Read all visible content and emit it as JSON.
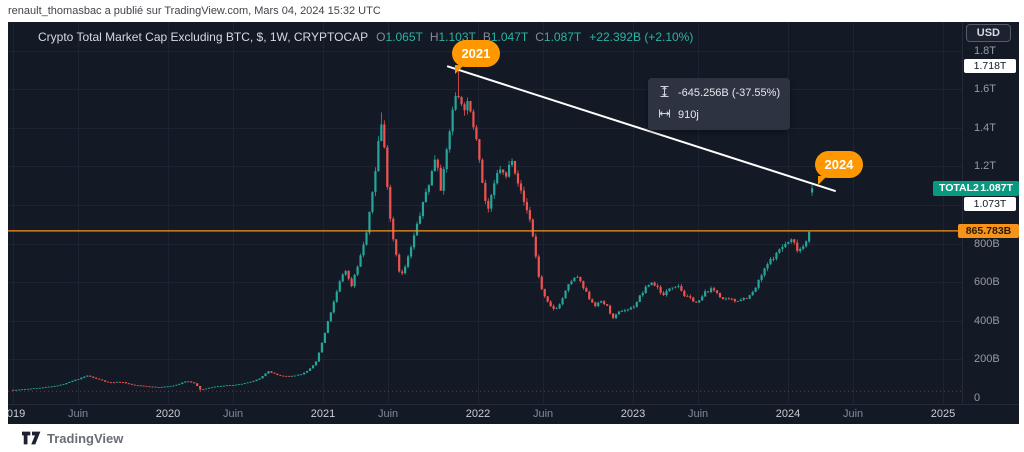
{
  "attribution": {
    "text": "renault_thomasbac a publié sur TradingView.com, Mars 04, 2024 15:32 UTC"
  },
  "legend": {
    "title": "Crypto Total Market Cap Excluding BTC, $, 1W, CRYPTOCAP",
    "ohlc": [
      {
        "label": "O",
        "value": "1.065T"
      },
      {
        "label": "H",
        "value": "1.103T"
      },
      {
        "label": "B",
        "value": "1.047T"
      },
      {
        "label": "C",
        "value": "1.087T"
      }
    ],
    "change": "+22.392B (+2.10%)"
  },
  "measure_tooltip": {
    "price_change": "-645.256B (-37.55%)",
    "duration": "910j"
  },
  "callouts": [
    {
      "label": "2021"
    },
    {
      "label": "2024"
    }
  ],
  "price_axis": {
    "currency_button": "USD",
    "ticks": [
      {
        "label": "1.8T",
        "value": 1800
      },
      {
        "label": "1.6T",
        "value": 1600
      },
      {
        "label": "1.4T",
        "value": 1400
      },
      {
        "label": "1.2T",
        "value": 1200
      },
      {
        "label": "800B",
        "value": 800
      },
      {
        "label": "600B",
        "value": 600
      },
      {
        "label": "400B",
        "value": 400
      },
      {
        "label": "200B",
        "value": 200
      },
      {
        "label": "0",
        "value": 0
      }
    ],
    "badges": {
      "trendline_start_price": "1.718T",
      "symbol": "TOTAL2",
      "last_price": "1.087T",
      "trendline_end_price": "1.073T",
      "hline_price": "865.783B"
    }
  },
  "time_axis": {
    "ticks": [
      {
        "label": "2019",
        "value": 2019.0,
        "major": true
      },
      {
        "label": "Juin",
        "value": 2019.42,
        "major": false
      },
      {
        "label": "2020",
        "value": 2020.0,
        "major": true
      },
      {
        "label": "Juin",
        "value": 2020.42,
        "major": false
      },
      {
        "label": "2021",
        "value": 2021.0,
        "major": true
      },
      {
        "label": "Juin",
        "value": 2021.42,
        "major": false
      },
      {
        "label": "2022",
        "value": 2022.0,
        "major": true
      },
      {
        "label": "Juin",
        "value": 2022.42,
        "major": false
      },
      {
        "label": "2023",
        "value": 2023.0,
        "major": true
      },
      {
        "label": "Juin",
        "value": 2023.42,
        "major": false
      },
      {
        "label": "2024",
        "value": 2024.0,
        "major": true
      },
      {
        "label": "Juin",
        "value": 2024.42,
        "major": false
      },
      {
        "label": "2025",
        "value": 2025.0,
        "major": true
      }
    ]
  },
  "footer": {
    "brand": "TradingView"
  },
  "chart_data": {
    "type": "candlestick",
    "symbol": "CRYPTOCAP:TOTAL2",
    "interval": "1W",
    "title": "Crypto Total Market Cap Excluding BTC",
    "units": "billions USD",
    "x_domain_years": [
      2018.97,
      2025.16
    ],
    "y_axis": {
      "min": 0,
      "max": 1950,
      "grid_step_b": 200
    },
    "start_year": 2019.0,
    "end_year": 2024.17,
    "week_step": 0.019165,
    "seed": 7,
    "up_color": "#26a69a",
    "down_color": "#ef5350",
    "hline_b": 865.783,
    "dotted_line_b": 35,
    "trendline": {
      "from": {
        "year": 2021.806,
        "value_b": 1718
      },
      "to": {
        "year": 2024.303,
        "value_b": 1073
      }
    },
    "measured_move": {
      "change_b": -645.256,
      "change_pct": -37.55,
      "duration_days": 910
    },
    "last_candle_b": {
      "open": 1065,
      "high": 1103,
      "low": 1047,
      "close": 1087
    },
    "spikes": [
      {
        "year": 2021.38,
        "high_b": 1480
      },
      {
        "year": 2021.87,
        "high_b": 1718
      },
      {
        "year": 2020.21,
        "low_b": 33
      }
    ],
    "anchors": [
      [
        2019.0,
        42
      ],
      [
        2019.08,
        46
      ],
      [
        2019.17,
        52
      ],
      [
        2019.25,
        58
      ],
      [
        2019.33,
        72
      ],
      [
        2019.42,
        95
      ],
      [
        2019.48,
        112
      ],
      [
        2019.54,
        96
      ],
      [
        2019.62,
        80
      ],
      [
        2019.7,
        84
      ],
      [
        2019.78,
        66
      ],
      [
        2019.87,
        60
      ],
      [
        2019.95,
        56
      ],
      [
        2020.04,
        62
      ],
      [
        2020.12,
        86
      ],
      [
        2020.17,
        74
      ],
      [
        2020.21,
        42
      ],
      [
        2020.29,
        56
      ],
      [
        2020.38,
        63
      ],
      [
        2020.46,
        70
      ],
      [
        2020.54,
        80
      ],
      [
        2020.6,
        98
      ],
      [
        2020.65,
        136
      ],
      [
        2020.71,
        116
      ],
      [
        2020.79,
        106
      ],
      [
        2020.87,
        124
      ],
      [
        2020.95,
        170
      ],
      [
        2021.0,
        290
      ],
      [
        2021.04,
        400
      ],
      [
        2021.08,
        500
      ],
      [
        2021.12,
        600
      ],
      [
        2021.15,
        645
      ],
      [
        2021.18,
        555
      ],
      [
        2021.21,
        650
      ],
      [
        2021.25,
        760
      ],
      [
        2021.29,
        890
      ],
      [
        2021.33,
        1110
      ],
      [
        2021.36,
        1350
      ],
      [
        2021.38,
        1430
      ],
      [
        2021.41,
        1150
      ],
      [
        2021.44,
        900
      ],
      [
        2021.47,
        780
      ],
      [
        2021.5,
        655
      ],
      [
        2021.53,
        700
      ],
      [
        2021.57,
        790
      ],
      [
        2021.61,
        900
      ],
      [
        2021.65,
        1010
      ],
      [
        2021.69,
        1120
      ],
      [
        2021.73,
        1270
      ],
      [
        2021.76,
        1120
      ],
      [
        2021.79,
        1250
      ],
      [
        2021.82,
        1420
      ],
      [
        2021.85,
        1560
      ],
      [
        2021.87,
        1620
      ],
      [
        2021.9,
        1520
      ],
      [
        2021.93,
        1560
      ],
      [
        2021.96,
        1430
      ],
      [
        2022.0,
        1350
      ],
      [
        2022.03,
        1150
      ],
      [
        2022.06,
        1000
      ],
      [
        2022.1,
        1090
      ],
      [
        2022.14,
        1180
      ],
      [
        2022.18,
        1120
      ],
      [
        2022.22,
        1230
      ],
      [
        2022.26,
        1150
      ],
      [
        2022.3,
        1020
      ],
      [
        2022.34,
        930
      ],
      [
        2022.37,
        760
      ],
      [
        2022.4,
        600
      ],
      [
        2022.44,
        500
      ],
      [
        2022.48,
        445
      ],
      [
        2022.52,
        470
      ],
      [
        2022.56,
        540
      ],
      [
        2022.6,
        590
      ],
      [
        2022.64,
        612
      ],
      [
        2022.68,
        545
      ],
      [
        2022.72,
        490
      ],
      [
        2022.76,
        475
      ],
      [
        2022.8,
        495
      ],
      [
        2022.84,
        460
      ],
      [
        2022.87,
        405
      ],
      [
        2022.91,
        425
      ],
      [
        2022.95,
        445
      ],
      [
        2023.0,
        462
      ],
      [
        2023.04,
        520
      ],
      [
        2023.08,
        560
      ],
      [
        2023.12,
        592
      ],
      [
        2023.16,
        570
      ],
      [
        2023.2,
        532
      ],
      [
        2023.25,
        580
      ],
      [
        2023.29,
        612
      ],
      [
        2023.33,
        560
      ],
      [
        2023.37,
        522
      ],
      [
        2023.42,
        502
      ],
      [
        2023.46,
        540
      ],
      [
        2023.5,
        562
      ],
      [
        2023.54,
        542
      ],
      [
        2023.58,
        516
      ],
      [
        2023.62,
        496
      ],
      [
        2023.66,
        482
      ],
      [
        2023.7,
        512
      ],
      [
        2023.74,
        526
      ],
      [
        2023.78,
        552
      ],
      [
        2023.82,
        612
      ],
      [
        2023.86,
        662
      ],
      [
        2023.9,
        702
      ],
      [
        2023.94,
        748
      ],
      [
        2023.98,
        782
      ],
      [
        2024.02,
        802
      ],
      [
        2024.06,
        756
      ],
      [
        2024.1,
        792
      ],
      [
        2024.13,
        855
      ],
      [
        2024.155,
        1010
      ],
      [
        2024.17,
        1087
      ]
    ]
  }
}
